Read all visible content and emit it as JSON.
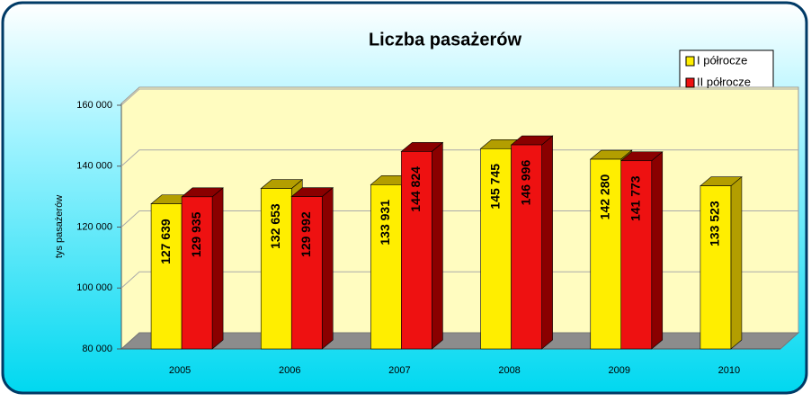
{
  "chart_data": {
    "type": "bar3d",
    "title": "Liczba pasażerów",
    "ylabel": "tys pasażerów",
    "categories": [
      "2005",
      "2006",
      "2007",
      "2008",
      "2009",
      "2010"
    ],
    "series": [
      {
        "name": "I półrocze",
        "color": "#ffee00",
        "side": "#b39e00",
        "values": [
          127639,
          132653,
          133931,
          145745,
          142280,
          133523
        ],
        "value_labels": [
          "127 639",
          "132 653",
          "133 931",
          "145 745",
          "142 280",
          "133 523"
        ]
      },
      {
        "name": "II półrocze",
        "color": "#ee1111",
        "side": "#8a0000",
        "values": [
          129935,
          129992,
          144824,
          146996,
          141773,
          null
        ],
        "value_labels": [
          "129 935",
          "129 992",
          "144 824",
          "146 996",
          "141 773",
          null
        ]
      }
    ],
    "ylim": [
      80000,
      160000
    ],
    "yticks": [
      {
        "value": 80000,
        "label": "80 000"
      },
      {
        "value": 100000,
        "label": "100 000"
      },
      {
        "value": 120000,
        "label": "120 000"
      },
      {
        "value": 140000,
        "label": "140 000"
      },
      {
        "value": 160000,
        "label": "160 000"
      }
    ],
    "grid": true,
    "legend": "top-right"
  }
}
